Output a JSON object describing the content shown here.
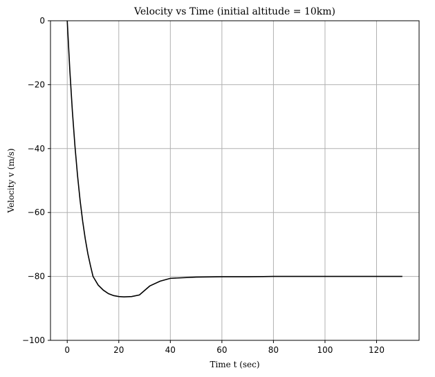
{
  "chart_data": {
    "type": "line",
    "title": "Velocity vs Time (initial altitude = 10km)",
    "xlabel": "Time t (sec)",
    "ylabel": "Velocity v (m/s)",
    "xlim": [
      -6.5,
      136.5
    ],
    "ylim": [
      -100,
      0
    ],
    "xticks": [
      0,
      20,
      40,
      60,
      80,
      100,
      120
    ],
    "yticks": [
      0,
      -20,
      -40,
      -60,
      -80,
      -100
    ],
    "xtick_labels": [
      "0",
      "20",
      "40",
      "60",
      "80",
      "100",
      "120"
    ],
    "ytick_labels": [
      "0",
      "−20",
      "−40",
      "−60",
      "−80",
      "−100"
    ],
    "grid": true,
    "series": [
      {
        "color": "#000000",
        "x": [
          0,
          1,
          2,
          3,
          4,
          5,
          6,
          7,
          8,
          9,
          10,
          12,
          14,
          16,
          18,
          20,
          22,
          25,
          28,
          32,
          36,
          40,
          50,
          60,
          70,
          80,
          90,
          100,
          110,
          120,
          130
        ],
        "y": [
          0,
          -15.4,
          -28.4,
          -39.3,
          -48.5,
          -56.3,
          -62.8,
          -68.3,
          -72.9,
          -76.6,
          -80.0,
          -82.7,
          -84.3,
          -85.4,
          -86.0,
          -86.3,
          -86.4,
          -86.3,
          -85.8,
          -83.0,
          -81.5,
          -80.6,
          -80.2,
          -80.1,
          -80.1,
          -80.0,
          -80.0,
          -80.0,
          -80.0,
          -80.0,
          -80.0
        ]
      }
    ]
  }
}
